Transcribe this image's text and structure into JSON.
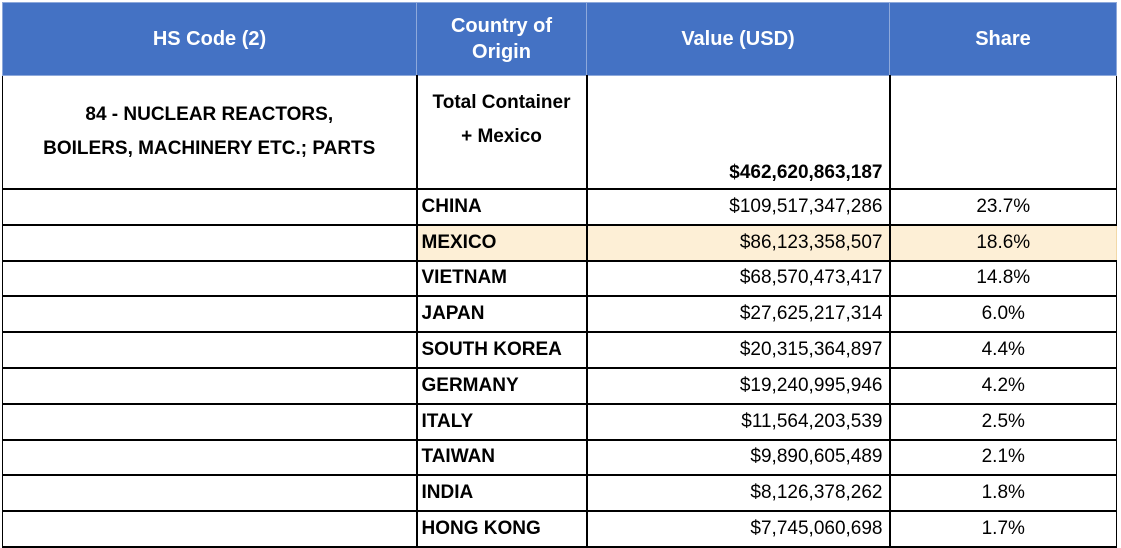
{
  "header": {
    "col_hs": "HS Code (2)",
    "col_country_line1": "Country of",
    "col_country_line2": "Origin",
    "col_value": "Value (USD)",
    "col_share": "Share"
  },
  "summary": {
    "hs_line1": "84 - NUCLEAR REACTORS,",
    "hs_line2": "BOILERS, MACHINERY ETC.; PARTS",
    "total_line1": "Total Container",
    "total_line2": "+ Mexico",
    "total_value": "$462,620,863,187",
    "total_share": ""
  },
  "rows": [
    {
      "country": "CHINA",
      "value": "$109,517,347,286",
      "share": "23.7%"
    },
    {
      "country": "MEXICO",
      "value": "$86,123,358,507",
      "share": "18.6%"
    },
    {
      "country": "VIETNAM",
      "value": "$68,570,473,417",
      "share": "14.8%"
    },
    {
      "country": "JAPAN",
      "value": "$27,625,217,314",
      "share": "6.0%"
    },
    {
      "country": "SOUTH KOREA",
      "value": "$20,315,364,897",
      "share": "4.4%"
    },
    {
      "country": "GERMANY",
      "value": "$19,240,995,946",
      "share": "4.2%"
    },
    {
      "country": "ITALY",
      "value": "$11,564,203,539",
      "share": "2.5%"
    },
    {
      "country": "TAIWAN",
      "value": "$9,890,605,489",
      "share": "2.1%"
    },
    {
      "country": "INDIA",
      "value": "$8,126,378,262",
      "share": "1.8%"
    },
    {
      "country": "HONG KONG",
      "value": "$7,745,060,698",
      "share": "1.7%"
    }
  ],
  "colors": {
    "header_bg": "#4472c4",
    "header_text": "#ffffff",
    "highlight_bg": "#fdefd6"
  }
}
